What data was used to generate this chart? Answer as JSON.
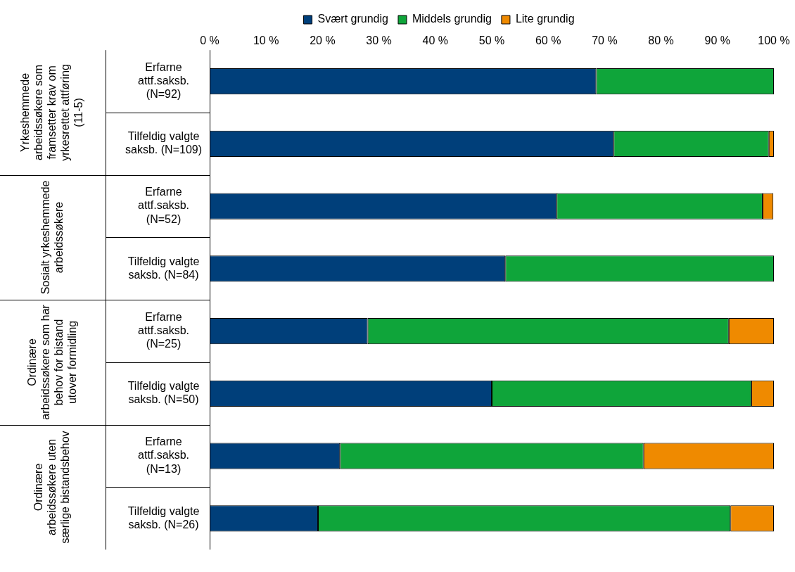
{
  "chart_data": {
    "type": "bar",
    "orientation": "horizontal",
    "stacked": true,
    "legend": "top",
    "categories": [
      "Erfarne attf.saksb. (N=92)",
      "Tilfeldig valgte saksb. (N=109)",
      "Erfarne attf.saksb. (N=52)",
      "Tilfeldig valgte saksb. (N=84)",
      "Erfarne attf.saksb. (N=25)",
      "Tilfeldig valgte saksb. (N=50)",
      "Erfarne attf.saksb. (N=13)",
      "Tilfeldig valgte saksb. (N=26)"
    ],
    "series": [
      {
        "name": "Svært grundig",
        "color": "#003f7a",
        "values": [
          68.5,
          71.6,
          61.5,
          52.4,
          28.0,
          50.0,
          23.1,
          19.2
        ]
      },
      {
        "name": "Middels grundig",
        "color": "#0fa53a",
        "values": [
          31.5,
          27.5,
          36.5,
          47.6,
          64.0,
          46.0,
          53.8,
          73.1
        ]
      },
      {
        "name": "Lite grundig",
        "color": "#ef8a00",
        "values": [
          0,
          0.9,
          1.9,
          0,
          8.0,
          4.0,
          23.1,
          7.7
        ]
      }
    ],
    "xlim": [
      0,
      100
    ],
    "xticks": [
      {
        "value": 0,
        "label": "0 %"
      },
      {
        "value": 10,
        "label": "10 %"
      },
      {
        "value": 20,
        "label": "20 %"
      },
      {
        "value": 30,
        "label": "30 %"
      },
      {
        "value": 40,
        "label": "40 %"
      },
      {
        "value": 50,
        "label": "50 %"
      },
      {
        "value": 60,
        "label": "60 %"
      },
      {
        "value": 70,
        "label": "70 %"
      },
      {
        "value": 80,
        "label": "80 %"
      },
      {
        "value": 90,
        "label": "90 %"
      },
      {
        "value": 100,
        "label": "100 %"
      }
    ],
    "annotations": [
      "Yrkeshemmede arbeidssøkere som framsetter krav om yrkesrettet attføring (11-5)",
      "Sosialt yrkeshemmede arbeidssøkere",
      "Ordinære arbeidssøkere som har behov for bistand utover formidling",
      "Ordinære arbeidssøkere uten særlige bistandsbehov"
    ]
  }
}
